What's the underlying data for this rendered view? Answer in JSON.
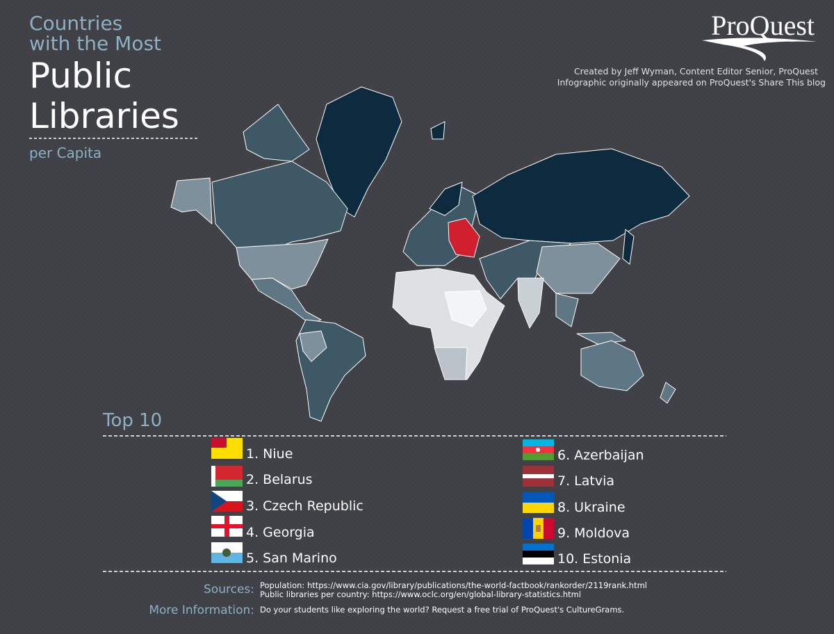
{
  "header": {
    "title_lines": [
      "Countries",
      "with the Most",
      "Public",
      "Libraries"
    ],
    "subtitle": "per Capita",
    "logo": "ProQuest",
    "credits": [
      "Created by Jeff Wyman, Content Editor Senior, ProQuest",
      "Infographic originally appeared on ProQuest's Share This blog"
    ]
  },
  "top10": {
    "title": "Top 10",
    "items": [
      "1. Niue",
      "2. Belarus",
      "3. Czech Republic",
      "4. Georgia",
      "5. San Marino",
      "6. Azerbaijan",
      "7. Latvia",
      "8. Ukraine",
      "9. Moldova",
      "10. Estonia"
    ]
  },
  "footer": {
    "sources_label": "Sources:",
    "sources": [
      "Population: https://www.cia.gov/library/publications/the-world-factbook/rankorder/2119rank.html",
      "Public libraries per country: https://www.oclc.org/en/global-library-statistics.html"
    ],
    "more_label": "More Information:",
    "more_text": "Do your students like exploring the world? Request a free trial of ProQuest's CultureGrams."
  }
}
